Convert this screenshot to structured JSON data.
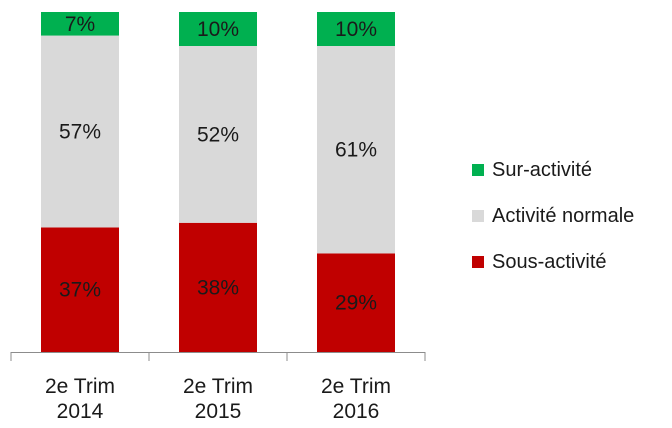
{
  "chart_data": {
    "type": "bar",
    "stacked": true,
    "percent": true,
    "categories": [
      [
        "2e Trim",
        "2014"
      ],
      [
        "2e Trim",
        "2015"
      ],
      [
        "2e Trim",
        "2016"
      ]
    ],
    "series": [
      {
        "name": "Sous-activité",
        "values": [
          37,
          38,
          29
        ],
        "labels": [
          "37%",
          "38%",
          "29%"
        ],
        "color": "#c00000"
      },
      {
        "name": "Activité normale",
        "values": [
          57,
          52,
          61
        ],
        "labels": [
          "57%",
          "52%",
          "61%"
        ],
        "color": "#d9d9d9"
      },
      {
        "name": "Sur-activité",
        "values": [
          7,
          10,
          10
        ],
        "labels": [
          "7%",
          "10%",
          "10%"
        ],
        "color": "#00b050"
      }
    ],
    "legend_order": [
      "Sur-activité",
      "Activité normale",
      "Sous-activité"
    ],
    "legend_position": "right",
    "grid": false
  }
}
